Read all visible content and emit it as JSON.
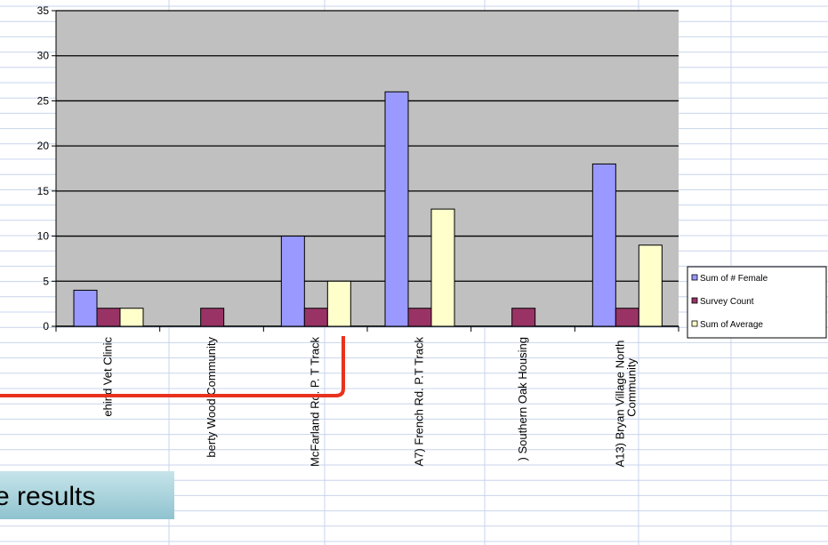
{
  "chart_data": {
    "type": "bar",
    "categories": [
      "ehind Vet Clinic",
      "berty Wood Community",
      "McFarland Rd. P. T Track",
      "A7) French Rd. P.T Track",
      ") Southern Oak Housing",
      "A13) Bryan Village North Community"
    ],
    "series": [
      {
        "name": "Sum of # Female",
        "color": "#9999ff",
        "values": [
          4,
          null,
          10,
          26,
          null,
          18
        ]
      },
      {
        "name": "Survey Count",
        "color": "#993366",
        "values": [
          2,
          2,
          2,
          2,
          2,
          2
        ]
      },
      {
        "name": "Sum of Average",
        "color": "#ffffcc",
        "values": [
          2,
          null,
          5,
          13,
          null,
          9
        ]
      }
    ],
    "ylim": [
      0,
      35
    ],
    "yticks": [
      0,
      5,
      10,
      15,
      20,
      25,
      30,
      35
    ],
    "grid": true,
    "legend": "right",
    "annotation": "e results"
  }
}
